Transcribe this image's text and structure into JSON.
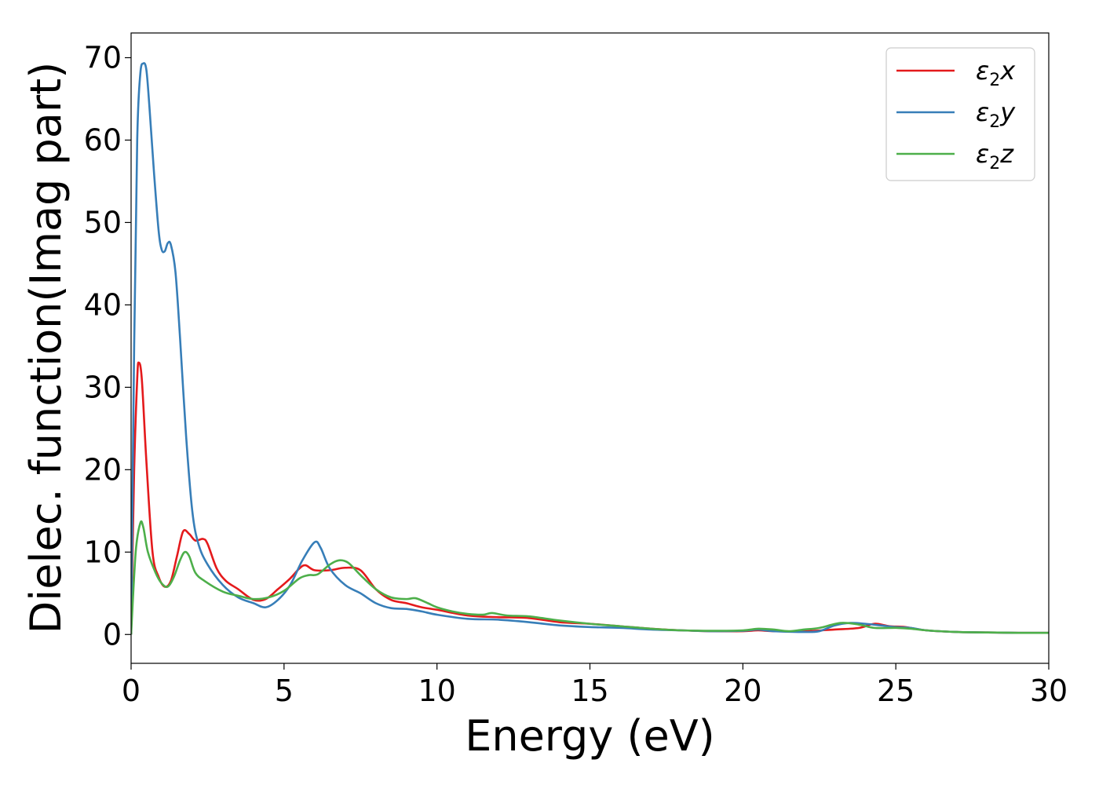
{
  "chart_data": {
    "type": "line",
    "title": "",
    "xlabel": "Energy (eV)",
    "ylabel": "Dielec. function(Imag part)",
    "xlim": [
      0,
      30
    ],
    "ylim": [
      -3.5,
      73
    ],
    "xticks": [
      0,
      5,
      10,
      15,
      20,
      25,
      30
    ],
    "yticks": [
      0,
      10,
      20,
      30,
      40,
      50,
      60,
      70
    ],
    "grid": false,
    "legend_position": "top-right",
    "series": [
      {
        "name": "ε₂x",
        "legend": {
          "base": "ε",
          "sub": "2",
          "suffix": "x"
        },
        "color": "#e41a1c",
        "points": [
          [
            0,
            0
          ],
          [
            0.1,
            20
          ],
          [
            0.2,
            31
          ],
          [
            0.25,
            33
          ],
          [
            0.35,
            31
          ],
          [
            0.5,
            21
          ],
          [
            0.7,
            10
          ],
          [
            0.9,
            7
          ],
          [
            1.1,
            5.8
          ],
          [
            1.3,
            6.5
          ],
          [
            1.5,
            9.5
          ],
          [
            1.7,
            12.5
          ],
          [
            1.9,
            12.2
          ],
          [
            2.1,
            11.4
          ],
          [
            2.35,
            11.6
          ],
          [
            2.5,
            11
          ],
          [
            2.8,
            8
          ],
          [
            3.1,
            6.5
          ],
          [
            3.5,
            5.5
          ],
          [
            4.0,
            4.2
          ],
          [
            4.4,
            4.3
          ],
          [
            4.8,
            5.5
          ],
          [
            5.2,
            6.8
          ],
          [
            5.5,
            8
          ],
          [
            5.7,
            8.4
          ],
          [
            6.0,
            7.8
          ],
          [
            6.5,
            7.8
          ],
          [
            7.0,
            8.1
          ],
          [
            7.5,
            7.8
          ],
          [
            8.0,
            5.5
          ],
          [
            8.5,
            4.2
          ],
          [
            9.0,
            3.8
          ],
          [
            9.5,
            3.3
          ],
          [
            10,
            3
          ],
          [
            11,
            2.3
          ],
          [
            12,
            2.1
          ],
          [
            13,
            2
          ],
          [
            14,
            1.5
          ],
          [
            15,
            1.3
          ],
          [
            16,
            1
          ],
          [
            17,
            0.7
          ],
          [
            18,
            0.5
          ],
          [
            19,
            0.4
          ],
          [
            20,
            0.4
          ],
          [
            20.5,
            0.5
          ],
          [
            21,
            0.4
          ],
          [
            22,
            0.4
          ],
          [
            23,
            0.6
          ],
          [
            23.8,
            0.8
          ],
          [
            24.3,
            1.3
          ],
          [
            24.8,
            1.0
          ],
          [
            25.3,
            0.9
          ],
          [
            26,
            0.5
          ],
          [
            27,
            0.3
          ],
          [
            28,
            0.25
          ],
          [
            29,
            0.2
          ],
          [
            30,
            0.2
          ]
        ]
      },
      {
        "name": "ε₂y",
        "legend": {
          "base": "ε",
          "sub": "2",
          "suffix": "y"
        },
        "color": "#377eb8",
        "points": [
          [
            0,
            0
          ],
          [
            0.1,
            35
          ],
          [
            0.2,
            60
          ],
          [
            0.3,
            68
          ],
          [
            0.4,
            69.3
          ],
          [
            0.5,
            68.5
          ],
          [
            0.6,
            64
          ],
          [
            0.75,
            56
          ],
          [
            0.9,
            49
          ],
          [
            1.0,
            46.7
          ],
          [
            1.1,
            46.5
          ],
          [
            1.2,
            47.5
          ],
          [
            1.3,
            47.3
          ],
          [
            1.45,
            44
          ],
          [
            1.6,
            36
          ],
          [
            1.8,
            24
          ],
          [
            2.0,
            15
          ],
          [
            2.2,
            11
          ],
          [
            2.5,
            8.5
          ],
          [
            3.0,
            6
          ],
          [
            3.5,
            4.5
          ],
          [
            4.0,
            3.8
          ],
          [
            4.4,
            3.3
          ],
          [
            4.8,
            4.2
          ],
          [
            5.2,
            6
          ],
          [
            5.6,
            9
          ],
          [
            6.0,
            11.2
          ],
          [
            6.2,
            10.5
          ],
          [
            6.5,
            8
          ],
          [
            7.0,
            6
          ],
          [
            7.5,
            5
          ],
          [
            8.0,
            3.8
          ],
          [
            8.5,
            3.2
          ],
          [
            9.0,
            3.1
          ],
          [
            9.5,
            2.8
          ],
          [
            10,
            2.4
          ],
          [
            11,
            1.9
          ],
          [
            12,
            1.8
          ],
          [
            13,
            1.5
          ],
          [
            14,
            1.1
          ],
          [
            15,
            0.9
          ],
          [
            16,
            0.8
          ],
          [
            17,
            0.6
          ],
          [
            18,
            0.5
          ],
          [
            19,
            0.4
          ],
          [
            20,
            0.45
          ],
          [
            20.5,
            0.6
          ],
          [
            21,
            0.4
          ],
          [
            22,
            0.3
          ],
          [
            22.5,
            0.4
          ],
          [
            23,
            1.1
          ],
          [
            23.5,
            1.4
          ],
          [
            24,
            1.3
          ],
          [
            24.5,
            1.1
          ],
          [
            25,
            0.9
          ],
          [
            25.5,
            0.8
          ],
          [
            26,
            0.5
          ],
          [
            27,
            0.3
          ],
          [
            28,
            0.25
          ],
          [
            29,
            0.2
          ],
          [
            30,
            0.2
          ]
        ]
      },
      {
        "name": "ε₂z",
        "legend": {
          "base": "ε",
          "sub": "2",
          "suffix": "z"
        },
        "color": "#4daf4a",
        "points": [
          [
            0,
            0
          ],
          [
            0.15,
            10
          ],
          [
            0.3,
            13.5
          ],
          [
            0.4,
            13
          ],
          [
            0.55,
            10
          ],
          [
            0.8,
            7.5
          ],
          [
            1.0,
            6.2
          ],
          [
            1.2,
            5.8
          ],
          [
            1.4,
            7
          ],
          [
            1.6,
            9
          ],
          [
            1.75,
            10
          ],
          [
            1.9,
            9.5
          ],
          [
            2.1,
            7.5
          ],
          [
            2.4,
            6.5
          ],
          [
            3.0,
            5.2
          ],
          [
            3.5,
            4.7
          ],
          [
            4.0,
            4.3
          ],
          [
            4.5,
            4.5
          ],
          [
            5.0,
            5.3
          ],
          [
            5.5,
            6.8
          ],
          [
            5.8,
            7.2
          ],
          [
            6.1,
            7.3
          ],
          [
            6.5,
            8.5
          ],
          [
            6.8,
            9
          ],
          [
            7.1,
            8.7
          ],
          [
            7.5,
            7.2
          ],
          [
            8.0,
            5.5
          ],
          [
            8.5,
            4.5
          ],
          [
            9.0,
            4.3
          ],
          [
            9.3,
            4.4
          ],
          [
            9.7,
            3.8
          ],
          [
            10,
            3.3
          ],
          [
            10.5,
            2.8
          ],
          [
            11,
            2.5
          ],
          [
            11.5,
            2.4
          ],
          [
            11.8,
            2.6
          ],
          [
            12.3,
            2.3
          ],
          [
            13,
            2.2
          ],
          [
            14,
            1.7
          ],
          [
            15,
            1.3
          ],
          [
            16,
            1
          ],
          [
            17,
            0.7
          ],
          [
            18,
            0.5
          ],
          [
            19,
            0.45
          ],
          [
            20,
            0.5
          ],
          [
            20.5,
            0.7
          ],
          [
            21,
            0.6
          ],
          [
            21.5,
            0.4
          ],
          [
            22,
            0.6
          ],
          [
            22.5,
            0.8
          ],
          [
            23.2,
            1.4
          ],
          [
            23.8,
            1.2
          ],
          [
            24.3,
            0.8
          ],
          [
            25,
            0.8
          ],
          [
            25.5,
            0.7
          ],
          [
            26,
            0.5
          ],
          [
            27,
            0.3
          ],
          [
            28,
            0.25
          ],
          [
            29,
            0.2
          ],
          [
            30,
            0.2
          ]
        ]
      }
    ]
  }
}
